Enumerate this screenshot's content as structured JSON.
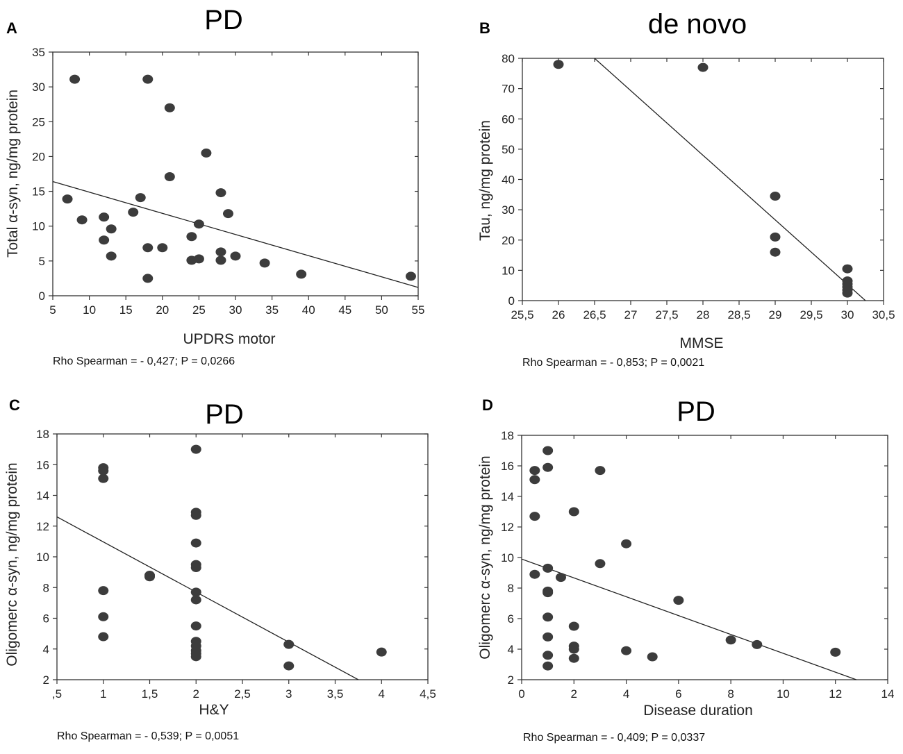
{
  "chart_data": [
    {
      "panel": "A",
      "type": "scatter",
      "title": "PD",
      "xlabel": "UPDRS motor",
      "ylabel": "Total α-syn, ng/mg protein",
      "stat": "Rho Spearman = - 0,427; P = 0,0266",
      "xlim": [
        5,
        55
      ],
      "ylim": [
        0,
        35
      ],
      "xticks": [
        5,
        10,
        15,
        20,
        25,
        30,
        35,
        40,
        45,
        50,
        55
      ],
      "xtick_labels": [
        "5",
        "10",
        "15",
        "20",
        "25",
        "30",
        "35",
        "40",
        "45",
        "50",
        "55"
      ],
      "yticks": [
        0,
        5,
        10,
        15,
        20,
        25,
        30,
        35
      ],
      "ytick_labels": [
        "0",
        "5",
        "10",
        "15",
        "20",
        "25",
        "30",
        "35"
      ],
      "points": [
        [
          8,
          31.1
        ],
        [
          18,
          31.1
        ],
        [
          21,
          27
        ],
        [
          26,
          20.5
        ],
        [
          21,
          17.1
        ],
        [
          7,
          13.9
        ],
        [
          17,
          14.1
        ],
        [
          28,
          14.8
        ],
        [
          16,
          12
        ],
        [
          29,
          11.8
        ],
        [
          9,
          10.9
        ],
        [
          12,
          11.3
        ],
        [
          13,
          9.6
        ],
        [
          25,
          10.3
        ],
        [
          12,
          8
        ],
        [
          24,
          8.5
        ],
        [
          18,
          6.9
        ],
        [
          20,
          6.9
        ],
        [
          28,
          6.3
        ],
        [
          13,
          5.7
        ],
        [
          24,
          5.1
        ],
        [
          25,
          5.3
        ],
        [
          28,
          5.1
        ],
        [
          30,
          5.7
        ],
        [
          34,
          4.7
        ],
        [
          39,
          3.1
        ],
        [
          18,
          2.5
        ],
        [
          54,
          2.8
        ]
      ],
      "fit": [
        [
          5,
          16.4
        ],
        [
          55,
          1.2
        ]
      ]
    },
    {
      "panel": "B",
      "type": "scatter",
      "title": "de novo",
      "xlabel": "MMSE",
      "ylabel": "Tau, ng/mg protein",
      "stat": "Rho Spearman = - 0,853; P = 0,0021",
      "xlim": [
        25.5,
        30.5
      ],
      "ylim": [
        0,
        80
      ],
      "xticks": [
        25.5,
        26,
        26.5,
        27,
        27.5,
        28,
        28.5,
        29,
        29.5,
        30,
        30.5
      ],
      "xtick_labels": [
        "25,5",
        "26",
        "26,5",
        "27",
        "27,5",
        "28",
        "28,5",
        "29",
        "29,5",
        "30",
        "30,5"
      ],
      "yticks": [
        0,
        10,
        20,
        30,
        40,
        50,
        60,
        70,
        80
      ],
      "ytick_labels": [
        "0",
        "10",
        "20",
        "30",
        "40",
        "50",
        "60",
        "70",
        "80"
      ],
      "points": [
        [
          26,
          78
        ],
        [
          28,
          77
        ],
        [
          29,
          34.5
        ],
        [
          29,
          21
        ],
        [
          29,
          16
        ],
        [
          30,
          10.5
        ],
        [
          30,
          6.5
        ],
        [
          30,
          5.5
        ],
        [
          30,
          4.5
        ],
        [
          30,
          3.5
        ],
        [
          30,
          2.5
        ]
      ],
      "fit": [
        [
          26.5,
          80
        ],
        [
          30.25,
          0
        ]
      ]
    },
    {
      "panel": "C",
      "type": "scatter",
      "title": "PD",
      "xlabel": "H&Y",
      "ylabel": "Oligomerc α-syn, ng/mg protein",
      "stat": "Rho Spearman = - 0,539; P = 0,0051",
      "xlim": [
        0.5,
        4.5
      ],
      "ylim": [
        2,
        18
      ],
      "xticks": [
        0.5,
        1,
        1.5,
        2,
        2.5,
        3,
        3.5,
        4,
        4.5
      ],
      "xtick_labels": [
        ",5",
        "1",
        "1,5",
        "2",
        "2,5",
        "3",
        "3,5",
        "4",
        "4,5"
      ],
      "yticks": [
        2,
        4,
        6,
        8,
        10,
        12,
        14,
        16,
        18
      ],
      "ytick_labels": [
        "2",
        "4",
        "6",
        "8",
        "10",
        "12",
        "14",
        "16",
        "18"
      ],
      "points": [
        [
          1,
          15.8
        ],
        [
          1,
          15.6
        ],
        [
          1,
          15.1
        ],
        [
          1,
          7.8
        ],
        [
          1,
          6.1
        ],
        [
          1,
          4.8
        ],
        [
          1.5,
          8.8
        ],
        [
          1.5,
          8.7
        ],
        [
          2,
          17
        ],
        [
          2,
          12.9
        ],
        [
          2,
          12.7
        ],
        [
          2,
          10.9
        ],
        [
          2,
          9.5
        ],
        [
          2,
          9.3
        ],
        [
          2,
          7.7
        ],
        [
          2,
          7.2
        ],
        [
          2,
          5.5
        ],
        [
          2,
          4.5
        ],
        [
          2,
          4.2
        ],
        [
          2,
          3.9
        ],
        [
          2,
          3.7
        ],
        [
          2,
          3.5
        ],
        [
          3,
          4.3
        ],
        [
          3,
          2.9
        ],
        [
          4,
          3.8
        ]
      ],
      "fit": [
        [
          0.5,
          12.6
        ],
        [
          3.75,
          2
        ]
      ]
    },
    {
      "panel": "D",
      "type": "scatter",
      "title": "PD",
      "xlabel": "Disease duration",
      "ylabel": "Oligomerc α-syn, ng/mg protein",
      "stat": "Rho Spearman = - 0,409; P = 0,0337",
      "xlim": [
        0,
        14
      ],
      "ylim": [
        2,
        18
      ],
      "xticks": [
        0,
        2,
        4,
        6,
        8,
        10,
        12,
        14
      ],
      "xtick_labels": [
        "0",
        "2",
        "4",
        "6",
        "8",
        "10",
        "12",
        "14"
      ],
      "yticks": [
        2,
        4,
        6,
        8,
        10,
        12,
        14,
        16,
        18
      ],
      "ytick_labels": [
        "2",
        "4",
        "6",
        "8",
        "10",
        "12",
        "14",
        "16",
        "18"
      ],
      "points": [
        [
          0.5,
          15.7
        ],
        [
          0.5,
          15.1
        ],
        [
          0.5,
          12.7
        ],
        [
          0.5,
          8.9
        ],
        [
          1,
          17
        ],
        [
          1,
          15.9
        ],
        [
          1,
          9.3
        ],
        [
          1,
          7.8
        ],
        [
          1,
          7.7
        ],
        [
          1,
          6.1
        ],
        [
          1,
          4.8
        ],
        [
          1,
          3.6
        ],
        [
          1,
          2.9
        ],
        [
          1.5,
          8.7
        ],
        [
          2,
          13
        ],
        [
          2,
          5.5
        ],
        [
          2,
          4.2
        ],
        [
          2,
          4
        ],
        [
          2,
          3.4
        ],
        [
          3,
          15.7
        ],
        [
          3,
          9.6
        ],
        [
          4,
          10.9
        ],
        [
          4,
          3.9
        ],
        [
          5,
          3.5
        ],
        [
          6,
          7.2
        ],
        [
          8,
          4.6
        ],
        [
          9,
          4.3
        ],
        [
          12,
          3.8
        ]
      ],
      "fit": [
        [
          0,
          9.9
        ],
        [
          12.8,
          2
        ]
      ]
    }
  ]
}
